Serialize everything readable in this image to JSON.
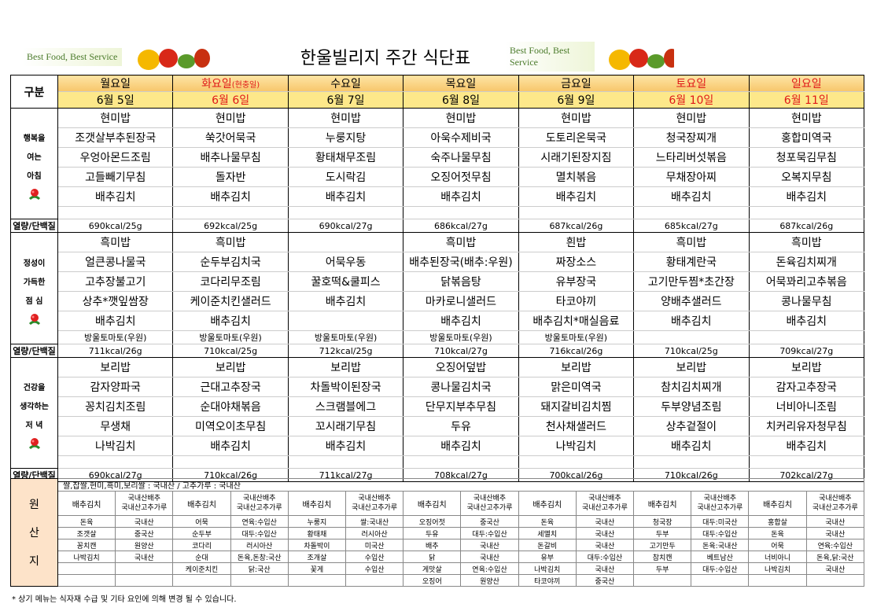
{
  "header": {
    "logo_text": "Best Food, Best Service",
    "title": "한울빌리지 주간 식단표"
  },
  "menu": {
    "label_header": "구분",
    "days": [
      {
        "name": "월요일",
        "date": "6월 5일",
        "holiday": false
      },
      {
        "name": "화요일",
        "note": "(현충일)",
        "date": "6월 6일",
        "holiday": true
      },
      {
        "name": "수요일",
        "date": "6월 7일",
        "holiday": false
      },
      {
        "name": "목요일",
        "date": "6월 8일",
        "holiday": false
      },
      {
        "name": "금요일",
        "date": "6월 9일",
        "holiday": false
      },
      {
        "name": "토요일",
        "date": "6월 10일",
        "holiday": true
      },
      {
        "name": "일요일",
        "date": "6월 11일",
        "holiday": true
      }
    ],
    "kcal_label": "열량/단백질",
    "meals": [
      {
        "label": [
          "행복을",
          "여는",
          "아침"
        ],
        "rows": [
          [
            "현미밥",
            "현미밥",
            "현미밥",
            "현미밥",
            "현미밥",
            "현미밥",
            "현미밥"
          ],
          [
            "조갯살부추된장국",
            "쑥갓어묵국",
            "누룽지탕",
            "아욱수제비국",
            "도토리온묵국",
            "청국장찌개",
            "홍합미역국"
          ],
          [
            "우엉아몬드조림",
            "배추나물무침",
            "황태채무조림",
            "숙주나물무침",
            "시래기된장지짐",
            "느타리버섯볶음",
            "청포묵김무침"
          ],
          [
            "고들빼기무침",
            "돌자반",
            "도시락김",
            "오징어젓무침",
            "멸치볶음",
            "무채장아찌",
            "오복지무침"
          ],
          [
            "배추김치",
            "배추김치",
            "배추김치",
            "배추김치",
            "배추김치",
            "배추김치",
            "배추김치"
          ],
          [
            null,
            null,
            null,
            null,
            null,
            null,
            null
          ]
        ],
        "kcal": [
          "690kcal/25g",
          "692kcal/25g",
          "690kcal/27g",
          "686kcal/27g",
          "687kcal/26g",
          "685kcal/27g",
          "687kcal/26g"
        ]
      },
      {
        "label": [
          "정성이",
          "가득한",
          "점 심"
        ],
        "rows": [
          [
            "흑미밥",
            "흑미밥",
            null,
            "흑미밥",
            "흰밥",
            "흑미밥",
            "흑미밥"
          ],
          [
            "얼큰콩나물국",
            "순두부김치국",
            "어묵우동",
            "배추된장국(배추:우원)",
            "짜장소스",
            "황태계란국",
            "돈육김치찌개"
          ],
          [
            "고추장불고기",
            "코다리무조림",
            "꿀호떡&쿨피스",
            "닭볶음탕",
            "유부장국",
            "고기만두찜*초간장",
            "어묵꽈리고추볶음"
          ],
          [
            "상추*깻잎쌈장",
            "케이준치킨샐러드",
            "배추김치",
            "마카로니샐러드",
            "타코야끼",
            "양배추샐러드",
            "콩나물무침"
          ],
          [
            "배추김치",
            "배추김치",
            null,
            "배추김치",
            "배추김치*매실음료",
            "배추김치",
            "배추김치"
          ],
          [
            "방울토마토(우원)",
            "방울토마토(우원)",
            "방울토마토(우원)",
            "방울토마토(우원)",
            "방울토마토(우원)",
            null,
            null
          ]
        ],
        "kcal": [
          "711kcal/26g",
          "710kcal/25g",
          "712kcal/25g",
          "710kcal/27g",
          "716kcal/26g",
          "710kcal/25g",
          "709kcal/27g"
        ]
      },
      {
        "label": [
          "건강을",
          "생각하는",
          "저 녁"
        ],
        "rows": [
          [
            "보리밥",
            "보리밥",
            "보리밥",
            "오징어덮밥",
            "보리밥",
            "보리밥",
            "보리밥"
          ],
          [
            "감자양파국",
            "근대고추장국",
            "차돌박이된장국",
            "콩나물김치국",
            "맑은미역국",
            "참치김치찌개",
            "감자고추장국"
          ],
          [
            "꽁치김치조림",
            "순대야채볶음",
            "스크램블에그",
            "단무지부추무침",
            "돼지갈비김치찜",
            "두부양념조림",
            "너비아니조림"
          ],
          [
            "무생채",
            "미역오이초무침",
            "꼬시래기무침",
            "두유",
            "천사채샐러드",
            "상추겉절이",
            "치커리유자청무침"
          ],
          [
            "나박김치",
            "배추김치",
            "배추김치",
            "배추김치",
            "나박김치",
            "배추김치",
            "배추김치"
          ],
          [
            null,
            null,
            null,
            null,
            null,
            null,
            null
          ]
        ],
        "kcal": [
          "690kcal/27g",
          "710kcal/26g",
          "711kcal/27g",
          "708kcal/27g",
          "700kcal/26g",
          "710kcal/26g",
          "702kcal/27g"
        ]
      }
    ]
  },
  "origin": {
    "label": [
      "원",
      "산",
      "지"
    ],
    "grains": "쌀,찹쌀,현미,흑미,보리쌀 : 국내산 / 고추가루 : 국내산",
    "header": [
      "배추김치",
      [
        "국내산배추",
        "국내산고추가루"
      ],
      "배추김치",
      [
        "국내산배추",
        "국내산고추가루"
      ],
      "배추김치",
      [
        "국내산배추",
        "국내산고추가루"
      ],
      "배추김치",
      [
        "국내산배추",
        "국내산고추가루"
      ],
      "배추김치",
      [
        "국내산배추",
        "국내산고추가루"
      ],
      "배추김치",
      [
        "국내산배추",
        "국내산고추가루"
      ],
      "배추김치",
      [
        "국내산배추",
        "국내산고추가루"
      ]
    ],
    "rows": [
      [
        "돈육",
        "국내산",
        "어묵",
        "연육:수입산",
        "누룽지",
        "쌀:국내산",
        "오징어젓",
        "중국산",
        "돈육",
        "국내산",
        "청국장",
        "대두:미국산",
        "홍합살",
        "국내산"
      ],
      [
        "조갯살",
        "중국산",
        "순두부",
        "대두:수입산",
        "황태채",
        "러시아산",
        "두유",
        "대두:수입산",
        "세멸치",
        "국내산",
        "두부",
        "대두:수입산",
        "돈육",
        "국내산"
      ],
      [
        "꽁치캔",
        "원양산",
        "코다리",
        "러시아산",
        "차돌박이",
        "미국산",
        "배추",
        "국내산",
        "돈갈비",
        "국내산",
        "고기만두",
        "돈육:국내산",
        "어묵",
        "연육:수입산"
      ],
      [
        "나박김치",
        "국내산",
        "순대",
        "돈육,돈창:국산",
        "조개살",
        "수입산",
        "닭",
        "국내산",
        "유부",
        "대두:수입산",
        "참치캔",
        "베트남산",
        "너비아니",
        "돈육,닭:국산"
      ],
      [
        null,
        null,
        "케이준치킨",
        "닭:국산",
        "꽃게",
        "수입산",
        "게맛살",
        "연육:수입산",
        "나박김치",
        "국내산",
        "두부",
        "대두:수입산",
        "나박김치",
        "국내산"
      ],
      [
        null,
        null,
        null,
        null,
        null,
        null,
        "오징어",
        "원양산",
        "타코야끼",
        "중국산",
        null,
        null,
        null,
        null
      ]
    ]
  },
  "footer": "* 상기 메뉴는 식자재 수급 및 기타 요인에 의해 변경 될 수 있습니다."
}
